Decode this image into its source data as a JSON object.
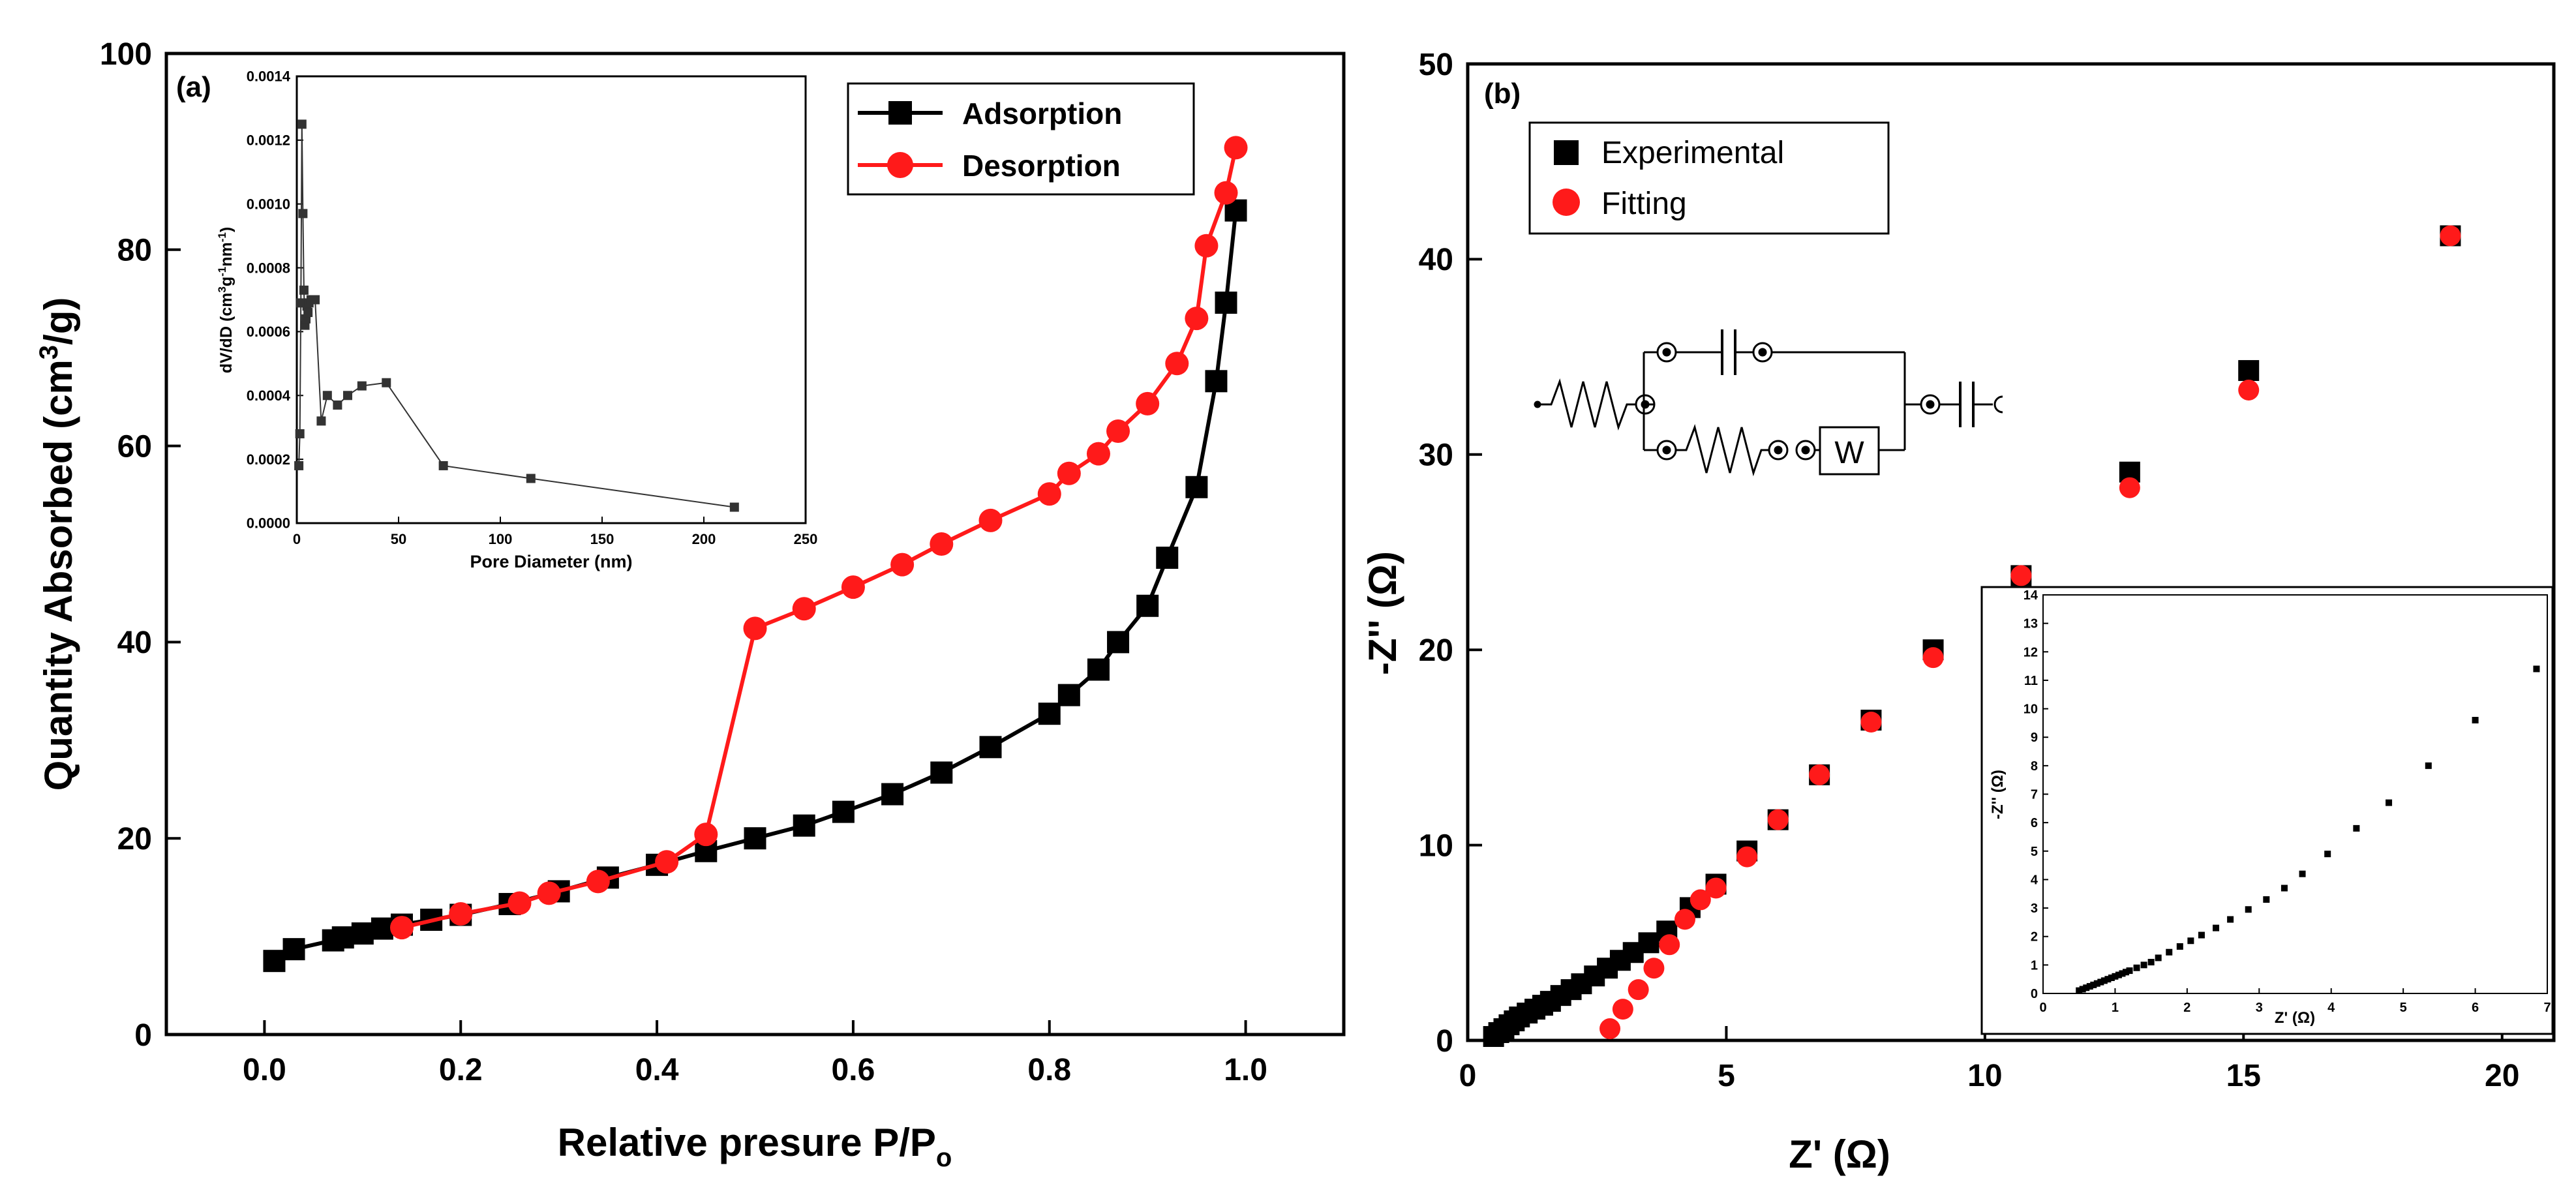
{
  "chart_data": [
    {
      "id": "a",
      "panel_label": "(a)",
      "type": "line",
      "title": "",
      "xlabel": "Relative presure P/P",
      "xlabel_sub": "o",
      "ylabel": "Quantity Absorbed (cm",
      "ylabel_sup": "3",
      "ylabel_tail": "/g)",
      "xlim": [
        -0.1,
        1.1
      ],
      "ylim": [
        0,
        100
      ],
      "xticks": [
        "0.0",
        "0.2",
        "0.4",
        "0.6",
        "0.8",
        "1.0"
      ],
      "yticks": [
        "0",
        "20",
        "40",
        "60",
        "80",
        "100"
      ],
      "legend_position": "top-right",
      "series": [
        {
          "name": "Adsorption",
          "color": "#000000",
          "marker": "square",
          "x": [
            0.01,
            0.03,
            0.07,
            0.08,
            0.1,
            0.12,
            0.14,
            0.17,
            0.2,
            0.25,
            0.3,
            0.35,
            0.4,
            0.45,
            0.5,
            0.55,
            0.59,
            0.64,
            0.69,
            0.74,
            0.8,
            0.82,
            0.85,
            0.87,
            0.9,
            0.92,
            0.95,
            0.97,
            0.98,
            0.99
          ],
          "y": [
            7.5,
            8.7,
            9.6,
            9.9,
            10.3,
            10.8,
            11.2,
            11.7,
            12.2,
            13.3,
            14.6,
            16.0,
            17.3,
            18.7,
            20.0,
            21.3,
            22.7,
            24.5,
            26.7,
            29.3,
            32.7,
            34.6,
            37.2,
            40.0,
            43.7,
            48.6,
            55.8,
            66.6,
            74.6,
            84.0
          ]
        },
        {
          "name": "Desorption",
          "color": "#ff1a1a",
          "marker": "circle",
          "x": [
            0.14,
            0.2,
            0.26,
            0.29,
            0.34,
            0.41,
            0.45,
            0.5,
            0.55,
            0.6,
            0.65,
            0.69,
            0.74,
            0.8,
            0.82,
            0.85,
            0.87,
            0.9,
            0.93,
            0.95,
            0.96,
            0.98,
            0.99
          ],
          "y": [
            10.9,
            12.3,
            13.4,
            14.4,
            15.6,
            17.6,
            20.4,
            41.4,
            43.4,
            45.6,
            47.9,
            50.0,
            52.4,
            55.1,
            57.2,
            59.2,
            61.5,
            64.3,
            68.4,
            73.0,
            80.4,
            85.8,
            90.4
          ]
        }
      ],
      "inset": {
        "type": "line",
        "xlabel": "Pore Diameter (nm)",
        "ylabel": "dV/dD (cm",
        "ylabel_sup1": "3",
        "ylabel_mid": "g",
        "ylabel_sup2": "-1",
        "ylabel_mid2": "nm",
        "ylabel_sup3": "-1",
        "ylabel_tail": ")",
        "xlim": [
          0,
          250
        ],
        "ylim": [
          0,
          0.0014
        ],
        "xticks": [
          "0",
          "50",
          "100",
          "150",
          "200",
          "250"
        ],
        "yticks": [
          "0.0000",
          "0.0002",
          "0.0004",
          "0.0006",
          "0.0008",
          "0.0010",
          "0.0012",
          "0.0014"
        ],
        "color": "#333333",
        "x": [
          1.0,
          1.5,
          2.0,
          2.5,
          3.0,
          3.5,
          4.0,
          4.5,
          5.0,
          5.5,
          6.0,
          7.0,
          8.0,
          9.0,
          12.0,
          15.0,
          20.0,
          25.0,
          32.0,
          44.0,
          72.0,
          115.0,
          215.0
        ],
        "y": [
          0.00018,
          0.00028,
          0.00069,
          0.00125,
          0.00097,
          0.00073,
          0.00062,
          0.00064,
          0.00068,
          0.00066,
          0.00069,
          0.0007,
          0.0007,
          0.0007,
          0.00032,
          0.0004,
          0.00037,
          0.0004,
          0.00043,
          0.00044,
          0.00018,
          0.00014,
          5e-05
        ]
      }
    },
    {
      "id": "b",
      "panel_label": "(b)",
      "type": "scatter",
      "title": "",
      "xlabel": "Z' (Ω)",
      "ylabel": "-Z'' (Ω)",
      "xlim": [
        0,
        21
      ],
      "ylim": [
        0,
        50
      ],
      "xticks": [
        "0",
        "5",
        "10",
        "15",
        "20"
      ],
      "yticks": [
        "0",
        "10",
        "20",
        "30",
        "40",
        "50"
      ],
      "legend_position": "top-left",
      "series": [
        {
          "name": "Experimental",
          "color": "#000000",
          "marker": "square",
          "x": [
            0.5,
            0.6,
            0.7,
            0.8,
            0.9,
            1.0,
            1.15,
            1.3,
            1.45,
            1.6,
            1.8,
            2.0,
            2.2,
            2.45,
            2.7,
            2.95,
            3.2,
            3.5,
            3.85,
            4.3,
            4.8,
            5.4,
            6.0,
            6.8,
            7.8,
            9.0,
            10.7,
            12.8,
            15.1,
            19.0
          ],
          "y": [
            0.2,
            0.4,
            0.6,
            0.8,
            1.0,
            1.2,
            1.4,
            1.6,
            1.8,
            2.0,
            2.3,
            2.6,
            2.9,
            3.3,
            3.7,
            4.1,
            4.5,
            5.0,
            5.6,
            6.8,
            8.0,
            9.7,
            11.3,
            13.6,
            16.4,
            20.0,
            23.8,
            29.1,
            34.3,
            41.2
          ]
        },
        {
          "name": "Fitting",
          "color": "#ff1a1a",
          "marker": "circle",
          "x": [
            2.75,
            3.0,
            3.3,
            3.6,
            3.9,
            4.2,
            4.5,
            4.8,
            5.4,
            6.0,
            6.8,
            7.8,
            9.0,
            10.7,
            12.8,
            15.1,
            19.0
          ],
          "y": [
            0.6,
            1.6,
            2.6,
            3.7,
            4.9,
            6.2,
            7.2,
            7.8,
            9.4,
            11.3,
            13.6,
            16.3,
            19.6,
            23.8,
            28.3,
            33.3,
            41.2
          ]
        }
      ],
      "circuit": {
        "warburg_label": "W"
      },
      "inset": {
        "type": "scatter",
        "xlabel": "Z' (Ω)",
        "ylabel": "-Z'' (Ω)",
        "xlim": [
          0,
          7
        ],
        "ylim": [
          0,
          14
        ],
        "xticks": [
          "0",
          "1",
          "2",
          "3",
          "4",
          "5",
          "6",
          "7"
        ],
        "yticks": [
          "0",
          "1",
          "2",
          "3",
          "4",
          "5",
          "6",
          "7",
          "8",
          "9",
          "10",
          "11",
          "12",
          "13",
          "14"
        ],
        "color": "#000000",
        "x": [
          0.5,
          0.55,
          0.6,
          0.65,
          0.7,
          0.75,
          0.8,
          0.85,
          0.9,
          0.95,
          1.0,
          1.05,
          1.1,
          1.15,
          1.2,
          1.3,
          1.4,
          1.5,
          1.6,
          1.75,
          1.9,
          2.05,
          2.2,
          2.4,
          2.6,
          2.85,
          3.1,
          3.35,
          3.6,
          3.95,
          4.35,
          4.8,
          5.35,
          6.0,
          6.85
        ],
        "y": [
          0.1,
          0.15,
          0.2,
          0.25,
          0.3,
          0.35,
          0.4,
          0.45,
          0.5,
          0.55,
          0.6,
          0.65,
          0.7,
          0.75,
          0.8,
          0.9,
          1.0,
          1.1,
          1.25,
          1.45,
          1.65,
          1.85,
          2.05,
          2.3,
          2.6,
          2.95,
          3.3,
          3.7,
          4.2,
          4.9,
          5.8,
          6.7,
          8.0,
          9.6,
          11.4
        ]
      }
    }
  ]
}
